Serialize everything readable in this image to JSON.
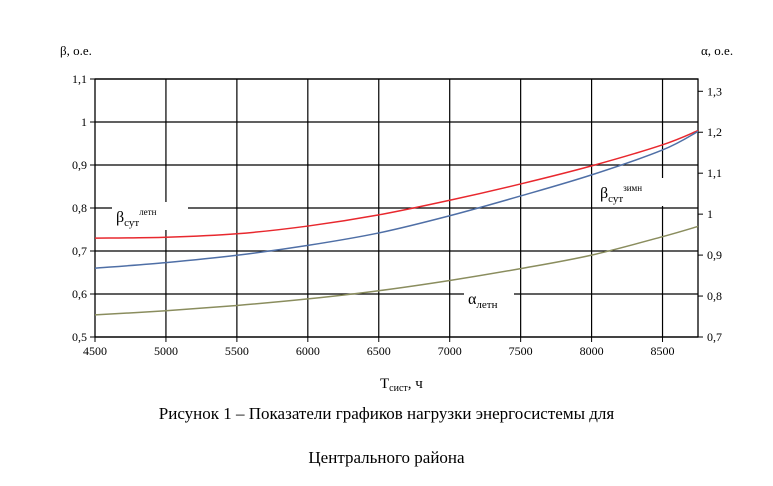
{
  "chart_data": {
    "type": "line",
    "grid": true,
    "x": [
      4500,
      5000,
      5500,
      6000,
      6500,
      7000,
      7500,
      8000,
      8500,
      8750
    ],
    "x_axis": {
      "label_main": "T",
      "label_sub": "сист",
      "label_unit": ", ч",
      "range": [
        4500,
        8750
      ],
      "ticks": [
        "4500",
        "5000",
        "5500",
        "6000",
        "6500",
        "7000",
        "7500",
        "8000",
        "8500"
      ]
    },
    "y_left": {
      "label": "β, о.е.",
      "range": [
        0.5,
        1.1
      ],
      "ticks": [
        "0,5",
        "0,6",
        "0,7",
        "0,8",
        "0,9",
        "1",
        "1,1"
      ]
    },
    "y_right": {
      "label": "α, о.е.",
      "range": [
        0.7,
        1.33
      ],
      "ticks": [
        "0,7",
        "0,8",
        "0,9",
        "1",
        "1,1",
        "1,2",
        "1,3"
      ]
    },
    "series": [
      {
        "name": "β_сут летн",
        "label_main": "β",
        "label_sub": "сут",
        "label_sup": "летн",
        "axis": "left",
        "color": "#e8282e",
        "values": [
          0.73,
          0.732,
          0.74,
          0.758,
          0.784,
          0.818,
          0.856,
          0.898,
          0.947,
          0.98
        ]
      },
      {
        "name": "β_сут зимн",
        "label_main": "β",
        "label_sub": "сут",
        "label_sup": "зимн",
        "axis": "left",
        "color": "#4f6fa6",
        "values": [
          0.66,
          0.673,
          0.69,
          0.713,
          0.742,
          0.782,
          0.828,
          0.877,
          0.935,
          0.978
        ]
      },
      {
        "name": "α_летн",
        "label_main": "α",
        "label_sub": "летн",
        "axis": "right",
        "color": "#8a8d5e",
        "values": [
          0.754,
          0.764,
          0.777,
          0.793,
          0.813,
          0.838,
          0.867,
          0.9,
          0.945,
          0.97
        ]
      }
    ]
  },
  "caption_line1": "Рисунок 1 – Показатели графиков нагрузки энергосистемы для",
  "caption_line2": "Центрального района"
}
